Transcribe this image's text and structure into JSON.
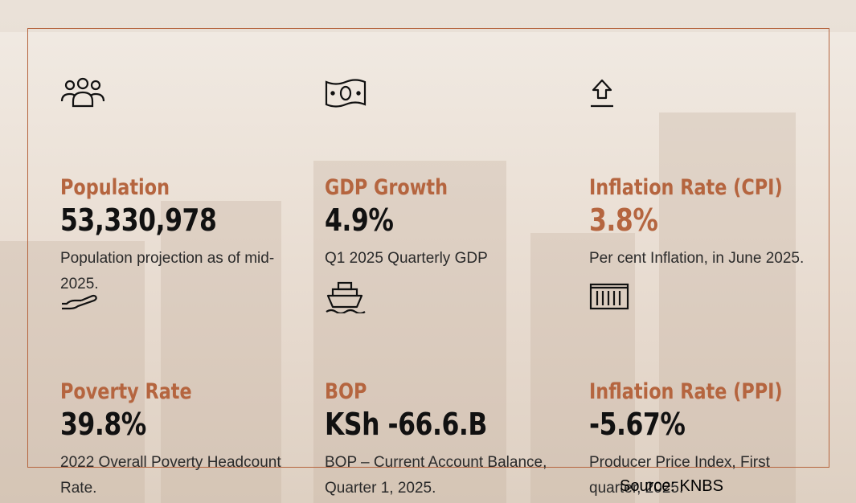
{
  "colors": {
    "accent": "#b5653f",
    "value": "#111111",
    "text": "#2a2a2a"
  },
  "stats": [
    {
      "icon": "people-group-icon",
      "title": "Population",
      "value": "53,330,978",
      "desc": "Population projection as of mid-2025."
    },
    {
      "icon": "banknote-icon",
      "title": "GDP Growth",
      "value": "4.9%",
      "desc": "Q1 2025 Quarterly GDP"
    },
    {
      "icon": "arrow-up-tray-icon",
      "title": "Inflation Rate (CPI)",
      "value": "3.8%",
      "desc": "Per cent Inflation, in June 2025."
    },
    {
      "icon": "open-hand-icon",
      "title": "Poverty Rate",
      "value": "39.8%",
      "desc": "2022 Overall Poverty Headcount Rate."
    },
    {
      "icon": "ship-icon",
      "title": "BOP",
      "value": "KSh -66.6.B",
      "desc": "BOP – Current Account Balance, Quarter 1, 2025."
    },
    {
      "icon": "container-icon",
      "title": "Inflation Rate (PPI)",
      "value": "-5.67%",
      "desc": "Producer Price Index, First quarter, 2025."
    }
  ],
  "source": "Source: KNBS"
}
